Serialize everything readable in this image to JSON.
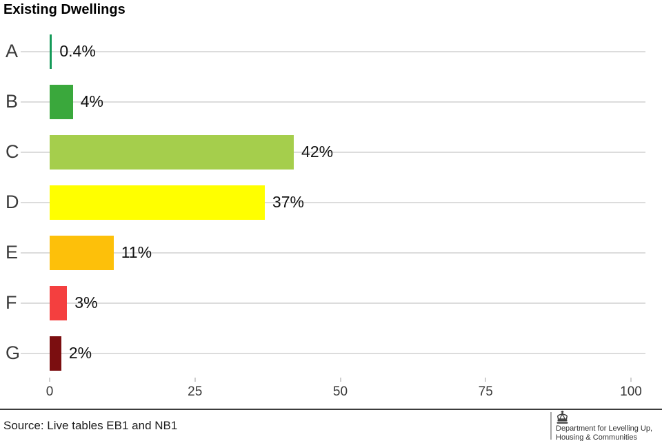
{
  "chart_data": {
    "type": "bar",
    "orientation": "horizontal",
    "title": "Existing Dwellings",
    "categories": [
      "A",
      "B",
      "C",
      "D",
      "E",
      "F",
      "G"
    ],
    "values": [
      0.4,
      4,
      42,
      37,
      11,
      3,
      2
    ],
    "value_labels": [
      "0.4%",
      "4%",
      "42%",
      "37%",
      "11%",
      "3%",
      "2%"
    ],
    "bar_colors": [
      "#149A58",
      "#3AA83C",
      "#A5CE4C",
      "#FFFF00",
      "#FDC00A",
      "#F43F3F",
      "#7B0E10"
    ],
    "xlabel": "",
    "ylabel": "",
    "xlim": [
      0,
      100
    ],
    "x_ticks": [
      0,
      25,
      50,
      75,
      100
    ],
    "grid": "horizontal-rows",
    "legend": "none"
  },
  "footer": {
    "source": "Source: Live tables EB1 and NB1",
    "department_line1": "Department for Levelling Up,",
    "department_line2": "Housing & Communities",
    "crest_icon": "uk-crown-crest"
  }
}
